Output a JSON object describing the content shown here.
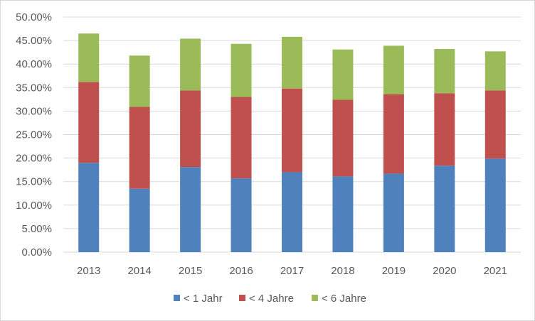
{
  "chart_data": {
    "type": "bar",
    "stacked": true,
    "categories": [
      "2013",
      "2014",
      "2015",
      "2016",
      "2017",
      "2018",
      "2019",
      "2020",
      "2021"
    ],
    "series": [
      {
        "name": "< 1 Jahr",
        "color": "#4f81bd",
        "values": [
          0.19,
          0.135,
          0.181,
          0.157,
          0.17,
          0.161,
          0.167,
          0.184,
          0.199
        ]
      },
      {
        "name": "< 4 Jahre",
        "color": "#c0504d",
        "values": [
          0.172,
          0.174,
          0.163,
          0.173,
          0.178,
          0.163,
          0.169,
          0.154,
          0.145
        ]
      },
      {
        "name": "< 6 Jahre",
        "color": "#9bbb59",
        "values": [
          0.103,
          0.109,
          0.11,
          0.113,
          0.11,
          0.107,
          0.103,
          0.094,
          0.083
        ]
      }
    ],
    "yticks": [
      "0.00%",
      "5.00%",
      "10.00%",
      "15.00%",
      "20.00%",
      "25.00%",
      "30.00%",
      "35.00%",
      "40.00%",
      "45.00%",
      "50.00%"
    ],
    "ylim": [
      0,
      0.5
    ],
    "grid": true,
    "gridColor": "#d9d9d9",
    "legendPosition": "bottom",
    "title": "",
    "xlabel": "",
    "ylabel": ""
  }
}
